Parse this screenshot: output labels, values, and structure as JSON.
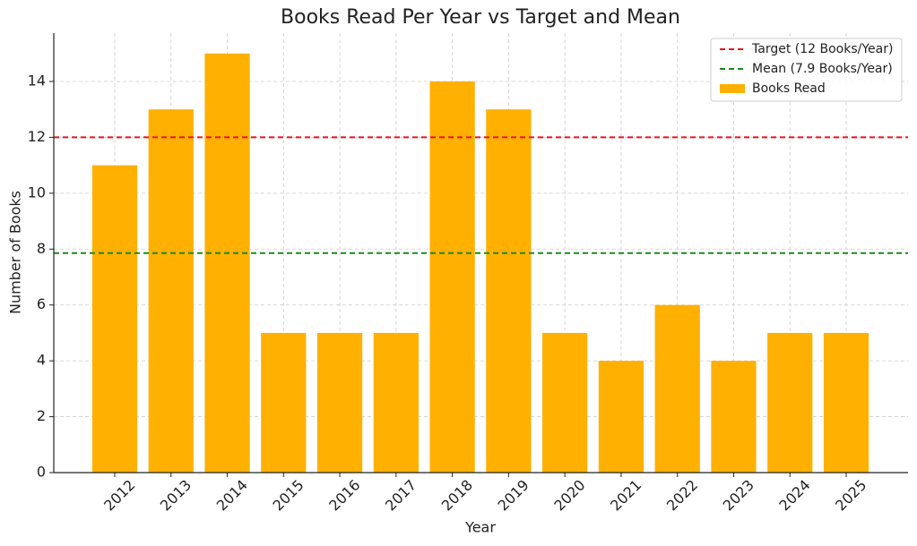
{
  "chart_data": {
    "type": "bar",
    "title": "Books Read Per Year vs Target and Mean",
    "x_label": "Year",
    "y_label": "Number of Books",
    "categories": [
      "2012",
      "2013",
      "2014",
      "2015",
      "2016",
      "2017",
      "2018",
      "2019",
      "2020",
      "2021",
      "2022",
      "2023",
      "2024",
      "2025"
    ],
    "series": [
      {
        "name": "Books Read",
        "color": "#ffb000",
        "values": [
          11,
          13,
          15,
          5,
          5,
          5,
          14,
          13,
          5,
          4,
          6,
          4,
          5,
          5
        ]
      }
    ],
    "reference_lines": [
      {
        "name": "Target (12 Books/Year)",
        "value": 12,
        "color": "#e8141c"
      },
      {
        "name": "Mean (7.9 Books/Year)",
        "value": 7.857,
        "color": "#1a8a1a"
      }
    ],
    "ylim": [
      0,
      15.73
    ],
    "yticks": [
      0,
      2,
      4,
      6,
      8,
      10,
      12,
      14
    ],
    "grid": true,
    "legend": "upper right"
  }
}
